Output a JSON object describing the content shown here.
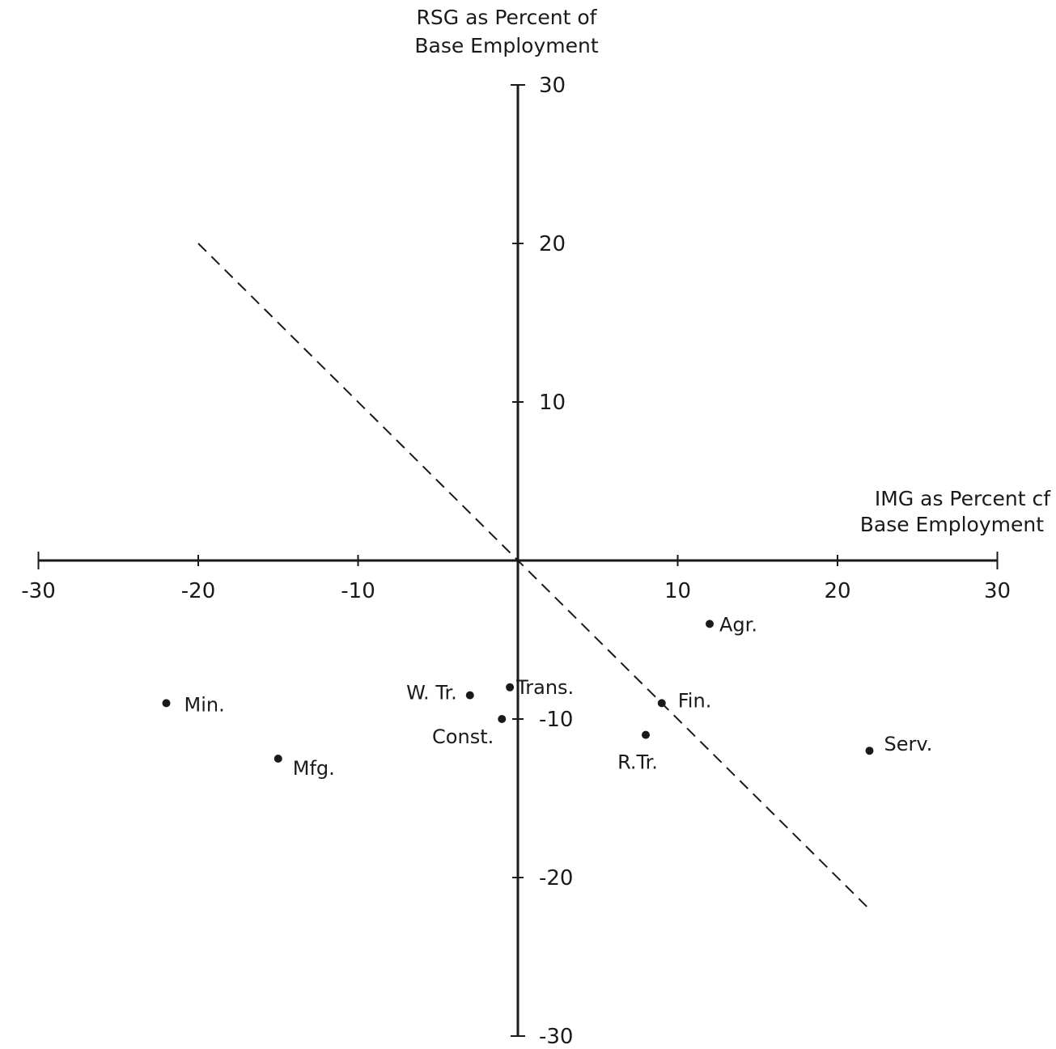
{
  "chart_data": {
    "type": "scatter",
    "title": "",
    "xlabel": [
      "IMG as Percent cf",
      "Base Employment"
    ],
    "ylabel": [
      "RSG as Percent of",
      "Base Employment"
    ],
    "xlim": [
      -30,
      30
    ],
    "ylim": [
      -30,
      30
    ],
    "x_ticks": [
      -30,
      -20,
      -10,
      10,
      20,
      30
    ],
    "y_ticks": [
      30,
      20,
      10,
      -10,
      -20,
      -30
    ],
    "x_tick_labels": [
      "-30",
      "-20",
      "-10",
      "10",
      "20",
      "30"
    ],
    "y_tick_labels": [
      "30",
      "20",
      "10",
      "-10",
      "-20",
      "-30"
    ],
    "grid": false,
    "legend": "none",
    "points": [
      {
        "label": "Agr.",
        "x": 12,
        "y": -4
      },
      {
        "label": "Fin.",
        "x": 9,
        "y": -9
      },
      {
        "label": "Trans.",
        "x": -0.5,
        "y": -8
      },
      {
        "label": "W. Tr.",
        "x": -3,
        "y": -8.5
      },
      {
        "label": "Const.",
        "x": -1,
        "y": -10
      },
      {
        "label": "R.Tr.",
        "x": 8,
        "y": -11
      },
      {
        "label": "Serv.",
        "x": 22,
        "y": -12
      },
      {
        "label": "Min.",
        "x": -22,
        "y": -9
      },
      {
        "label": "Mfg.",
        "x": -15,
        "y": -12.5
      }
    ],
    "reference_line": {
      "style": "dashed",
      "from": [
        -20,
        20
      ],
      "to": [
        22,
        -22
      ]
    }
  }
}
